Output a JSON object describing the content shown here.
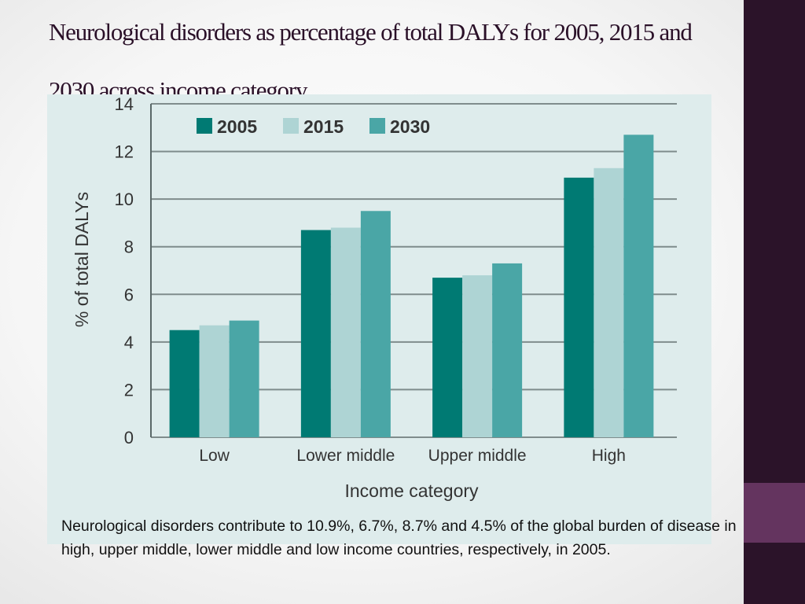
{
  "slide": {
    "title": "Neurological disorders as percentage of total DALYs for 2005, 2015 and 2030 across income category",
    "caption": "Neurological disorders contribute to 10.9%, 6.7%, 8.7% and 4.5% of the global burden of disease in high, upper middle, lower middle and low income countries, respectively, in 2005."
  },
  "colors": {
    "background": "#f6f6f6",
    "sidebar": "#2b1329",
    "sidebar_accent": "#64345f",
    "panel": "#deecec",
    "title": "#2a1028"
  },
  "chart_data": {
    "type": "bar",
    "title": "",
    "xlabel": "Income category",
    "ylabel": "% of total DALYs",
    "categories": [
      "Low",
      "Lower middle",
      "Upper middle",
      "High"
    ],
    "series": [
      {
        "name": "2005",
        "color": "#007a73",
        "values": [
          4.5,
          8.7,
          6.7,
          10.9
        ]
      },
      {
        "name": "2015",
        "color": "#aed4d4",
        "values": [
          4.7,
          8.8,
          6.8,
          11.3
        ]
      },
      {
        "name": "2030",
        "color": "#4aa6a6",
        "values": [
          4.9,
          9.5,
          7.3,
          12.7
        ]
      }
    ],
    "ylim": [
      0,
      14
    ],
    "yticks": [
      "0",
      "2",
      "4",
      "6",
      "8",
      "10",
      "12",
      "14"
    ],
    "grid": true,
    "legend_position": "top-left"
  }
}
